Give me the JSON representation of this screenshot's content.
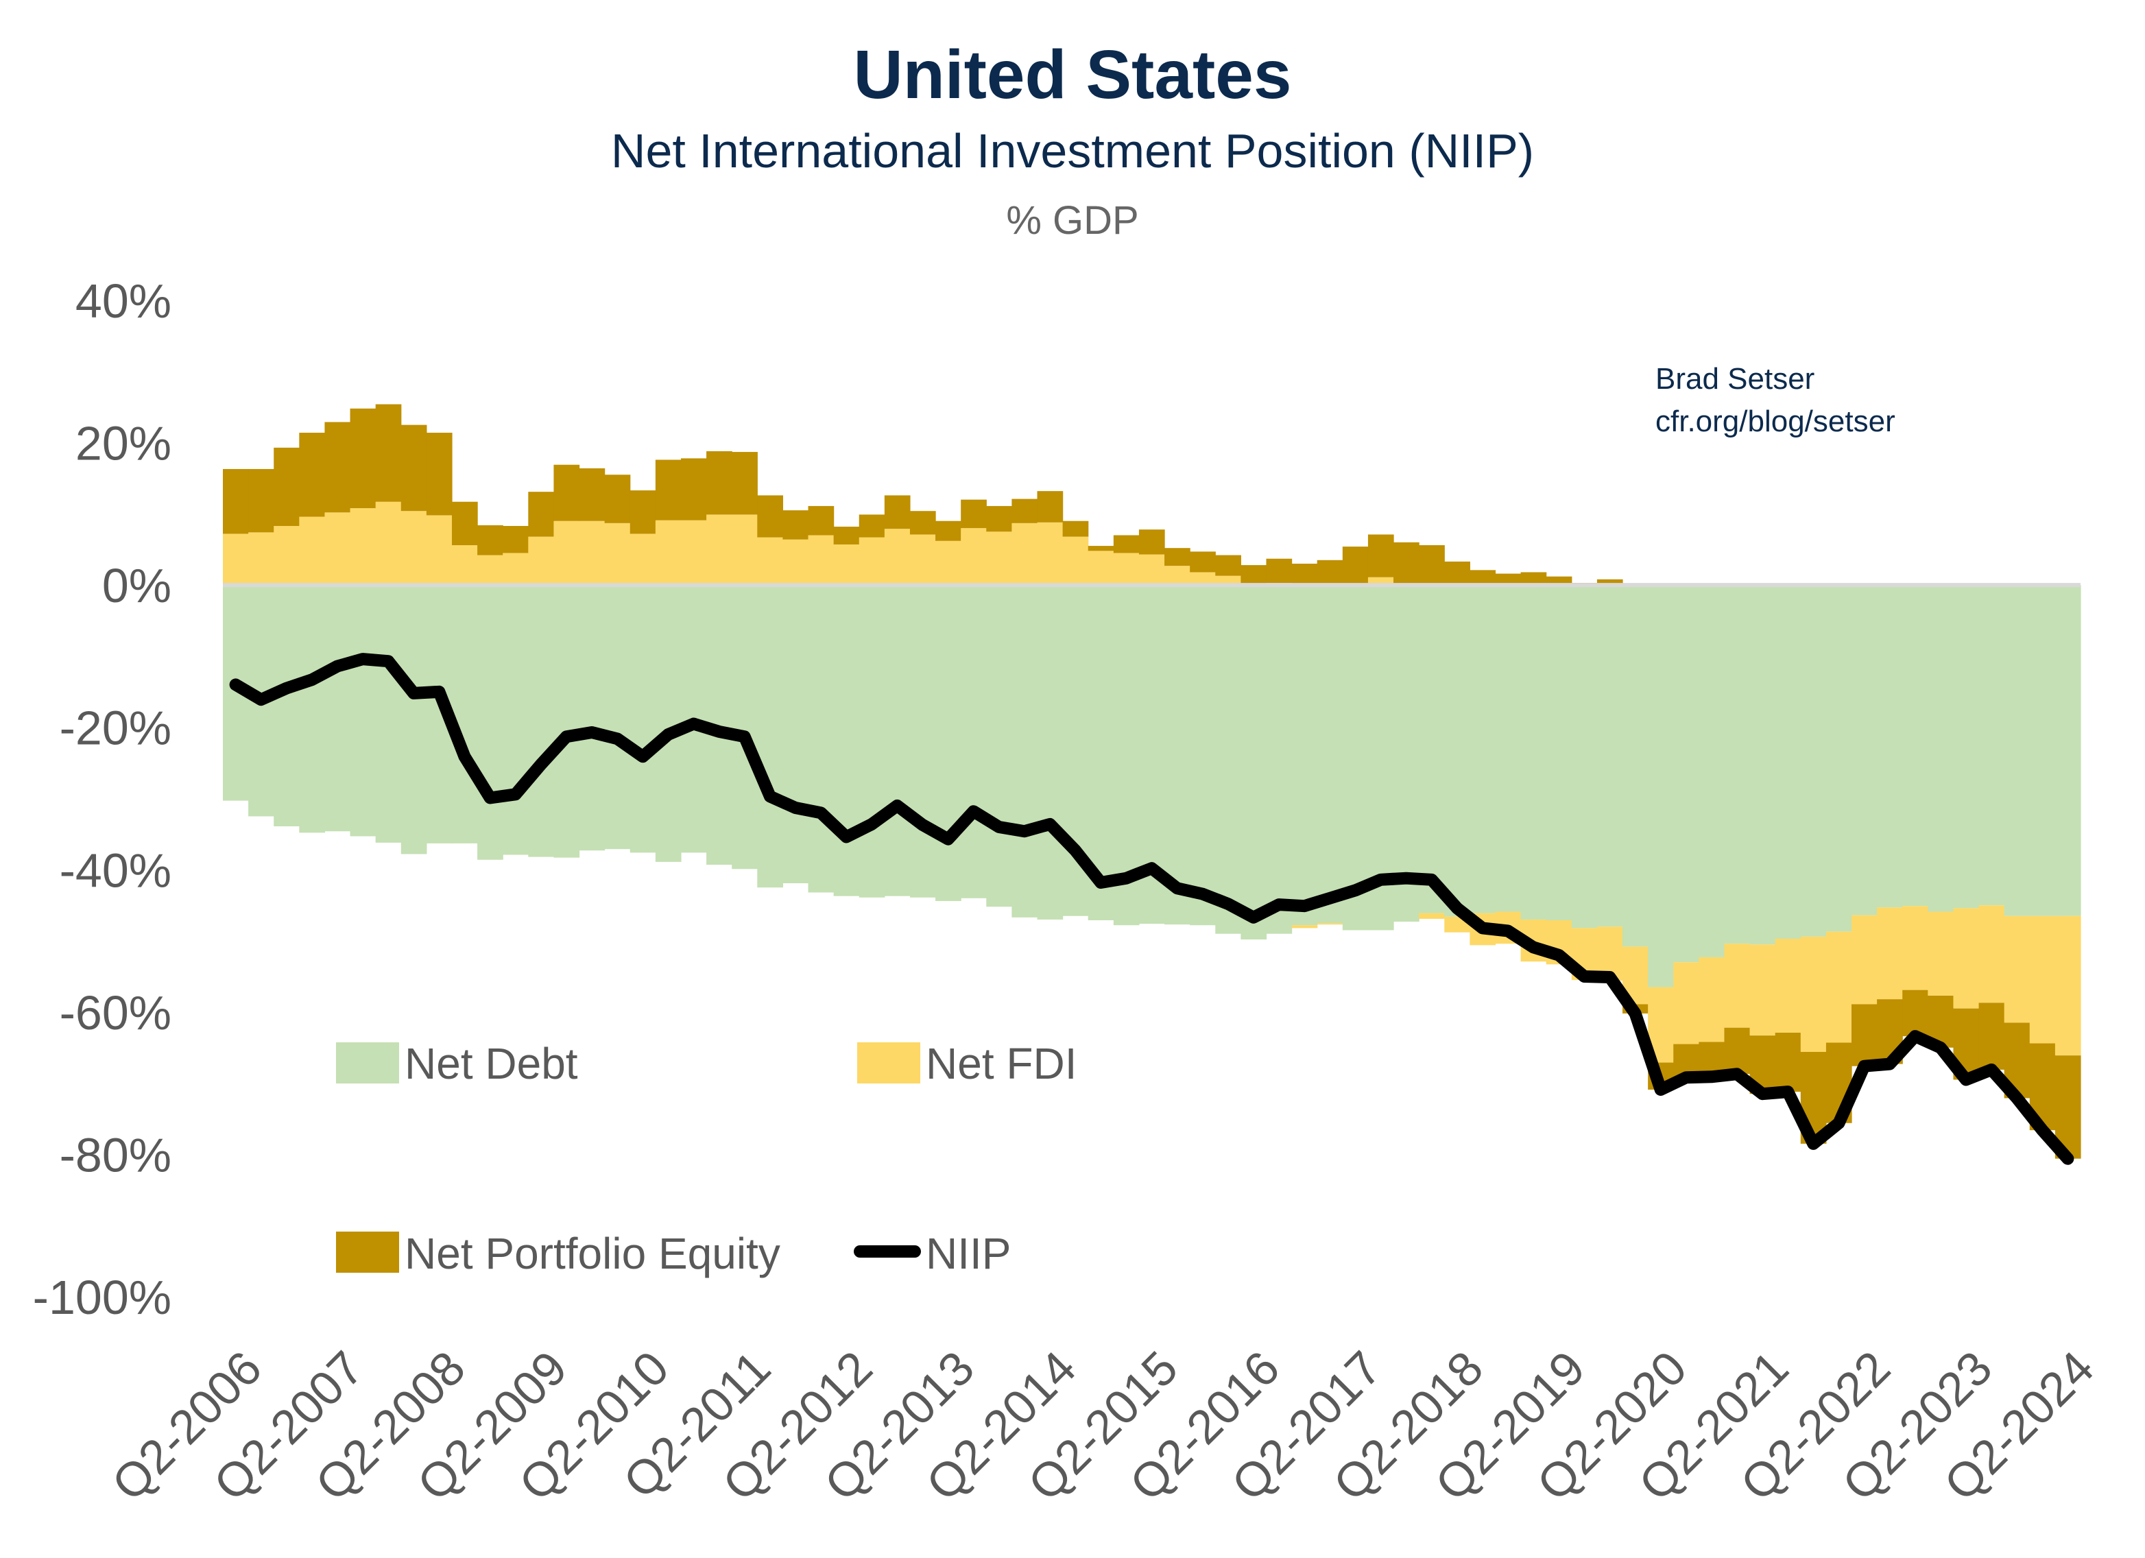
{
  "header": {
    "title": "United States",
    "subtitle": "Net International Investment Position (NIIP)",
    "unit": "% GDP"
  },
  "source": {
    "line1": "Brad Setser",
    "line2": "cfr.org/blog/setser"
  },
  "colors": {
    "net_debt": "#c5e0b4",
    "net_fdi": "#fdd866",
    "net_portfolio_equity": "#bf9000",
    "niip": "#000000",
    "zero_line": "#d9d9d9"
  },
  "chart_data": {
    "type": "bar",
    "stacked": true,
    "line_overlay": "NIIP",
    "title": "United States",
    "subtitle": "Net International Investment Position (NIIP)",
    "ylabel": "% GDP",
    "ylim": [
      -100,
      40
    ],
    "yticks": [
      "40%",
      "20%",
      "0%",
      "-20%",
      "-40%",
      "-60%",
      "-80%",
      "-100%"
    ],
    "ytick_values": [
      40,
      20,
      0,
      -20,
      -40,
      -60,
      -80,
      -100
    ],
    "x_start": "Q2-2006",
    "x_frequency": "quarterly",
    "xtick_labels": [
      "Q2-2006",
      "Q2-2007",
      "Q2-2008",
      "Q2-2009",
      "Q2-2010",
      "Q2-2011",
      "Q2-2012",
      "Q2-2013",
      "Q2-2014",
      "Q2-2015",
      "Q2-2016",
      "Q2-2017",
      "Q2-2018",
      "Q2-2019",
      "Q2-2020",
      "Q2-2021",
      "Q2-2022",
      "Q2-2023",
      "Q2-2024"
    ],
    "grid": false,
    "legend_placement": "bottom-left inside",
    "series": [
      {
        "name": "Net Debt",
        "kind": "bar",
        "values": [
          -30.3,
          -32.5,
          -33.9,
          -34.8,
          -34.6,
          -35.3,
          -36.2,
          -37.8,
          -36.3,
          -36.3,
          -38.6,
          -37.9,
          -38.2,
          -38.3,
          -37.3,
          -37.1,
          -37.6,
          -38.9,
          -37.6,
          -39.3,
          -39.9,
          -42.5,
          -41.9,
          -43.2,
          -43.7,
          -43.9,
          -43.7,
          -43.9,
          -44.4,
          -44.0,
          -45.2,
          -46.7,
          -47.0,
          -46.5,
          -47.1,
          -47.8,
          -47.6,
          -47.7,
          -47.8,
          -49.0,
          -49.8,
          -49.0,
          -47.8,
          -47.5,
          -48.5,
          -48.5,
          -47.3,
          -46.1,
          -46.6,
          -46.1,
          -45.9,
          -47.0,
          -47.1,
          -48.2,
          -48.0,
          -50.8,
          -56.5,
          -53.0,
          -52.3,
          -50.4,
          -50.5,
          -49.7,
          -49.4,
          -48.7,
          -46.4,
          -45.3,
          -45.1,
          -45.9,
          -45.4,
          -45.0,
          -46.5,
          -46.5,
          -46.5
        ]
      },
      {
        "name": "Net FDI",
        "kind": "bar",
        "values": [
          7.2,
          7.4,
          8.3,
          9.6,
          10.2,
          10.8,
          11.7,
          10.4,
          9.8,
          5.6,
          4.2,
          4.5,
          6.8,
          9.0,
          9.0,
          8.7,
          7.2,
          9.1,
          9.1,
          9.9,
          9.9,
          6.7,
          6.4,
          7.0,
          5.7,
          6.7,
          7.9,
          7.1,
          6.2,
          8.0,
          7.5,
          8.7,
          8.8,
          6.8,
          4.8,
          4.5,
          4.3,
          2.7,
          1.8,
          1.3,
          0.0,
          0.3,
          -0.4,
          -0.2,
          0.2,
          1.1,
          0.2,
          -0.8,
          -2.2,
          -4.5,
          -4.5,
          -5.9,
          -6.2,
          -7.3,
          -7.6,
          -8.1,
          -10.6,
          -11.5,
          -11.9,
          -11.8,
          -12.8,
          -13.2,
          -16.2,
          -15.6,
          -12.5,
          -12.9,
          -11.8,
          -11.8,
          -14.1,
          -13.7,
          -15.0,
          -17.9,
          -19.6
        ]
      },
      {
        "name": "Net Portfolio Equity",
        "kind": "bar",
        "values": [
          9.1,
          8.9,
          11.0,
          11.8,
          12.7,
          14.0,
          13.7,
          12.1,
          11.6,
          6.1,
          4.2,
          3.8,
          6.3,
          7.9,
          7.4,
          6.8,
          6.1,
          8.5,
          8.7,
          8.9,
          8.8,
          5.9,
          4.1,
          4.1,
          2.5,
          3.2,
          4.7,
          3.3,
          2.8,
          4.0,
          3.6,
          3.4,
          4.4,
          2.2,
          0.7,
          2.5,
          3.5,
          2.5,
          2.9,
          2.9,
          2.8,
          3.4,
          3.0,
          3.5,
          5.2,
          6.0,
          5.8,
          5.6,
          3.3,
          2.1,
          1.6,
          1.8,
          1.2,
          0.3,
          0.8,
          -1.3,
          -3.8,
          -4.7,
          -4.9,
          -6.5,
          -8.2,
          -8.3,
          -12.9,
          -11.3,
          -8.7,
          -9.1,
          -6.5,
          -7.3,
          -10.0,
          -9.4,
          -10.6,
          -12.2,
          -14.5
        ]
      },
      {
        "name": "NIIP",
        "kind": "line",
        "values": [
          -14.0,
          -16.1,
          -14.5,
          -13.3,
          -11.4,
          -10.4,
          -10.7,
          -15.2,
          -15.0,
          -24.1,
          -29.9,
          -29.4,
          -25.2,
          -21.3,
          -20.7,
          -21.6,
          -24.1,
          -21.0,
          -19.5,
          -20.6,
          -21.3,
          -29.7,
          -31.3,
          -32.0,
          -35.4,
          -33.6,
          -31.0,
          -33.7,
          -35.7,
          -31.8,
          -34.0,
          -34.6,
          -33.6,
          -37.3,
          -41.8,
          -41.2,
          -39.8,
          -42.6,
          -43.4,
          -44.8,
          -46.7,
          -44.9,
          -45.1,
          -44.0,
          -42.9,
          -41.4,
          -41.2,
          -41.4,
          -45.4,
          -48.2,
          -48.6,
          -50.9,
          -52.0,
          -55.0,
          -55.1,
          -60.2,
          -70.9,
          -69.2,
          -69.1,
          -68.7,
          -71.5,
          -71.2,
          -78.5,
          -75.6,
          -67.6,
          -67.3,
          -63.4,
          -65.0,
          -69.5,
          -68.1,
          -72.1,
          -76.6,
          -80.6
        ]
      }
    ]
  },
  "legend": {
    "net_debt": "Net Debt",
    "net_fdi": "Net FDI",
    "net_portfolio_equity": "Net Portfolio Equity",
    "niip": "NIIP"
  }
}
